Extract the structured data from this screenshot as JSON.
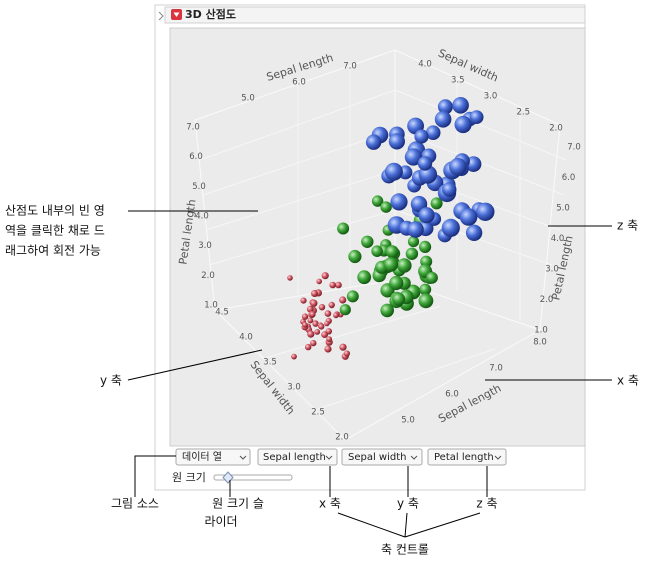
{
  "panel": {
    "title": "3D 산점도"
  },
  "plot": {
    "axis_titles": {
      "top_left": "Sepal length",
      "top_right": "Sepal width",
      "left": "Petal length",
      "right": "Petal length",
      "bottom_left": "Sepal width",
      "bottom_right": "Sepal length"
    },
    "ticks": {
      "left": [
        "7.0",
        "6.0",
        "5.0",
        "4.0",
        "3.0",
        "2.0",
        "1.0"
      ],
      "top_left": [
        "7.0",
        "6.0",
        "5.0"
      ],
      "top_right": [
        "4.0",
        "3.5",
        "3.0",
        "2.5",
        "2.0"
      ],
      "right": [
        "7.0",
        "6.0",
        "5.0",
        "4.0",
        "3.0",
        "2.0",
        "1.0"
      ],
      "bottom_left": [
        "4.5",
        "4.0",
        "3.5",
        "3.0",
        "2.5",
        "2.0"
      ],
      "bottom_right": [
        "8.0",
        "7.0",
        "6.0",
        "5.0"
      ]
    }
  },
  "controls": {
    "source": "데이터 열",
    "x": "Sepal length",
    "y": "Sepal width",
    "z": "Petal length",
    "size_label": "원 크기"
  },
  "callouts": {
    "rotate": [
      "산점도 내부의 빈 영",
      "역을 클릭한 채로 드",
      "래그하여 회전 가능"
    ],
    "z_axis": "z 축",
    "y_axis": "y 축",
    "x_axis": "x 축",
    "source": "그림 소스",
    "slider": [
      "원 크기 슬",
      "라이더"
    ],
    "x_control": "x 축",
    "y_control": "y 축",
    "z_control": "z 축",
    "axis_controls": "축 컨트롤"
  }
}
